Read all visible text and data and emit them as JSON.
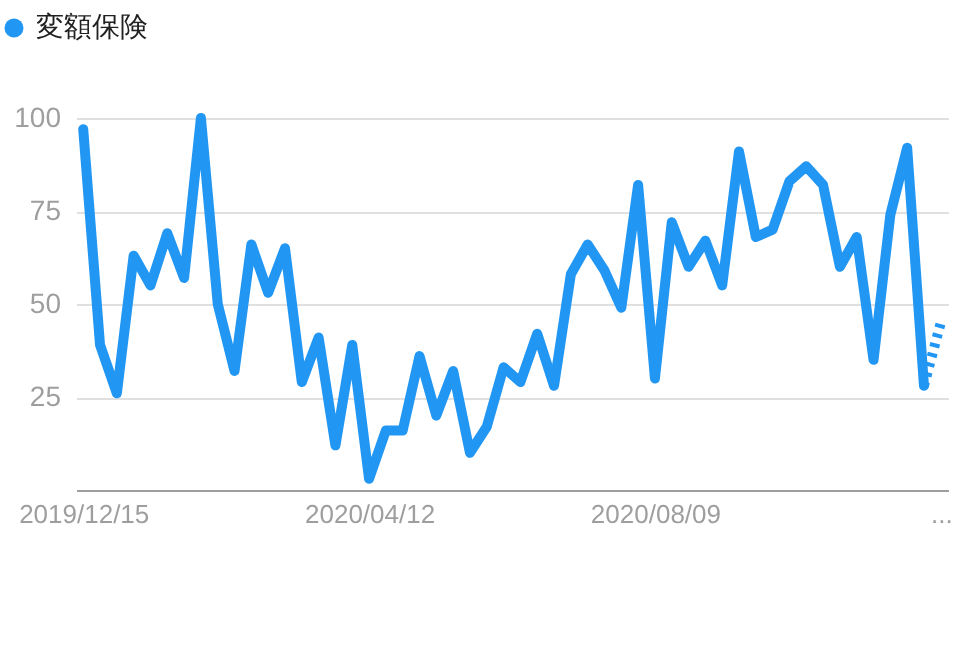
{
  "chart_data": {
    "type": "line",
    "legend": "top left",
    "grid": "y",
    "marker": "none",
    "line_style": "solid",
    "x": [
      "2019-12-15",
      "2019-12-22",
      "2019-12-29",
      "2020-01-05",
      "2020-01-12",
      "2020-01-19",
      "2020-01-26",
      "2020-02-02",
      "2020-02-09",
      "2020-02-16",
      "2020-02-23",
      "2020-03-01",
      "2020-03-08",
      "2020-03-15",
      "2020-03-22",
      "2020-03-29",
      "2020-04-05",
      "2020-04-12",
      "2020-04-19",
      "2020-04-26",
      "2020-05-03",
      "2020-05-10",
      "2020-05-17",
      "2020-05-24",
      "2020-05-31",
      "2020-06-07",
      "2020-06-14",
      "2020-06-21",
      "2020-06-28",
      "2020-07-05",
      "2020-07-12",
      "2020-07-19",
      "2020-07-26",
      "2020-08-02",
      "2020-08-09",
      "2020-08-16",
      "2020-08-23",
      "2020-08-30",
      "2020-09-06",
      "2020-09-13",
      "2020-09-20",
      "2020-09-27",
      "2020-10-04",
      "2020-10-11",
      "2020-10-18",
      "2020-10-25",
      "2020-11-01",
      "2020-11-08",
      "2020-11-15",
      "2020-11-22",
      "2020-11-29"
    ],
    "xlim": [
      "2019-12-12",
      "2020-12-09"
    ],
    "xticks": [
      {
        "value": "2019-12-15",
        "label": "2019/12/15"
      },
      {
        "value": "2020-04-12",
        "label": "2020/04/12"
      },
      {
        "value": "2020-08-09",
        "label": "2020/08/09"
      },
      {
        "value": "2020-12-06",
        "label": "..."
      }
    ],
    "ylim": [
      0,
      100
    ],
    "yticks": [
      25,
      50,
      75,
      100
    ],
    "series": [
      {
        "name": "変額保険",
        "color": "#2196f3",
        "values": [
          97,
          39,
          26,
          63,
          55,
          69,
          57,
          100,
          50,
          32,
          66,
          53,
          65,
          29,
          41,
          12,
          39,
          3,
          16,
          16,
          36,
          20,
          32,
          10,
          17,
          33,
          29,
          42,
          28,
          58,
          66,
          59,
          49,
          82,
          30,
          72,
          60,
          67,
          55,
          91,
          68,
          70,
          83,
          87,
          82,
          60,
          68,
          35,
          74,
          92,
          28
        ]
      },
      {
        "color": "#2196f3",
        "line_style": "dotted",
        "x": [
          "2020-11-29",
          "2020-12-06"
        ],
        "values": [
          28,
          45
        ]
      }
    ]
  }
}
